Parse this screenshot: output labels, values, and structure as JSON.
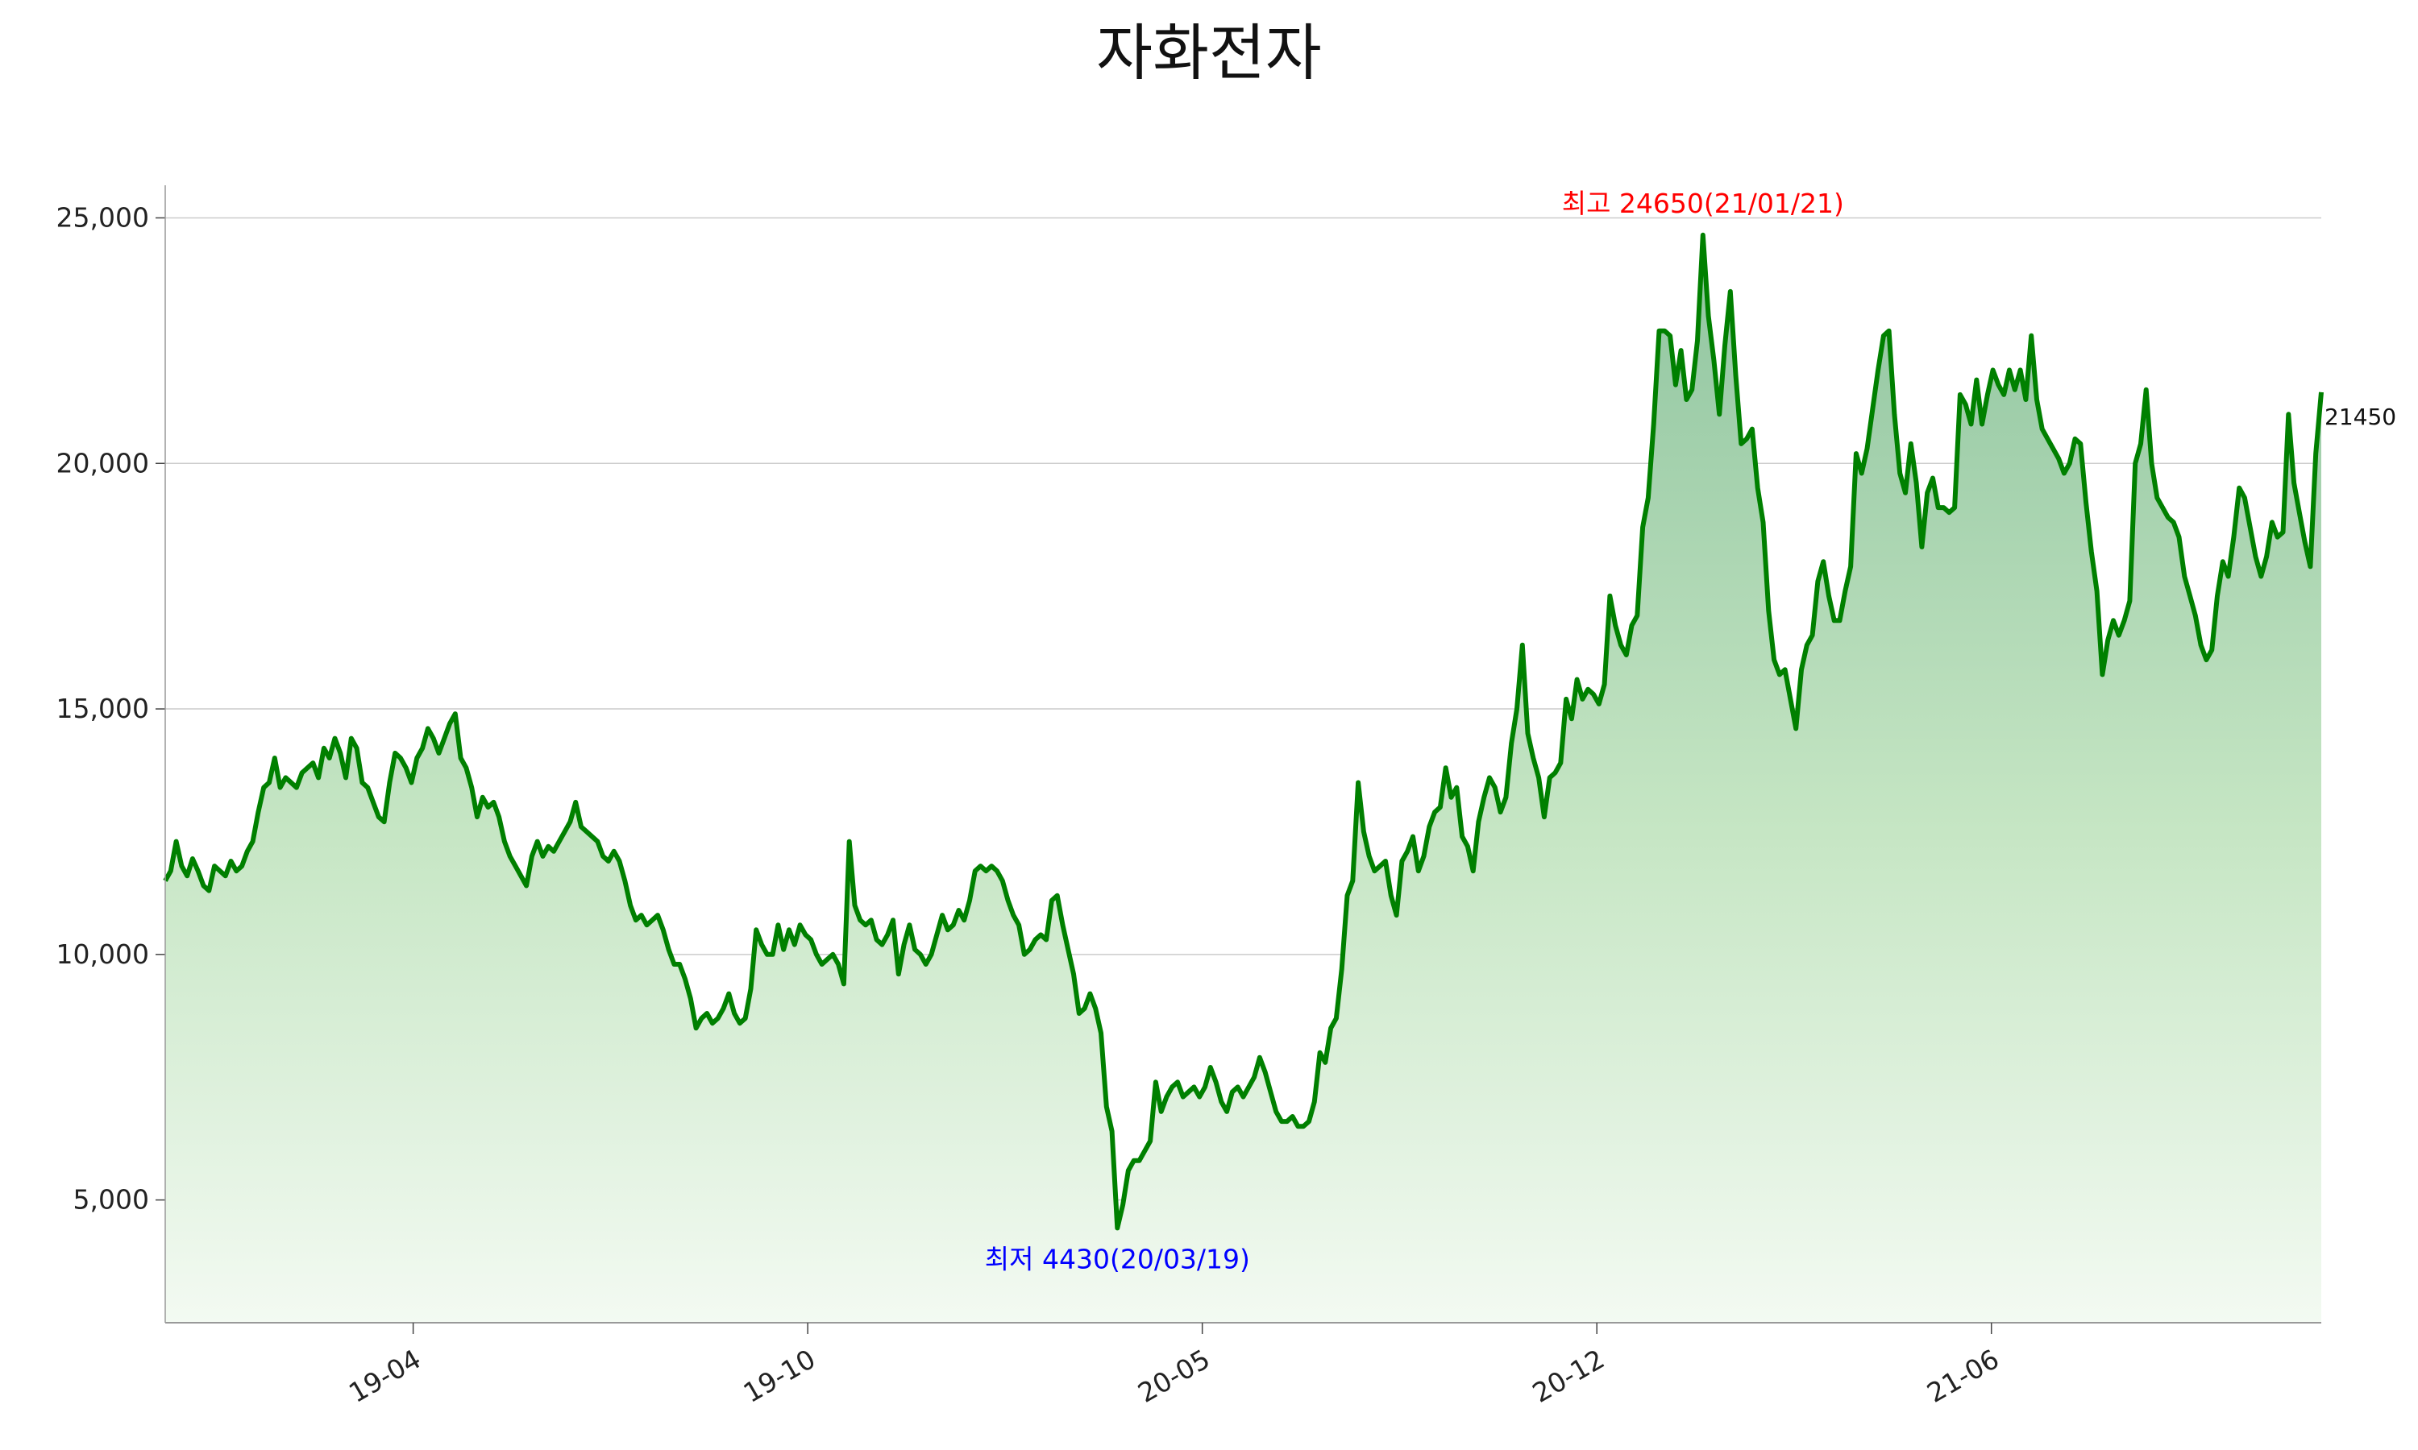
{
  "chart_data": {
    "type": "area",
    "title": "자화전자",
    "xlabel": "",
    "ylabel": "",
    "ylim": [
      2500,
      25500
    ],
    "y_ticks": [
      {
        "value": 5000,
        "label": "5,000"
      },
      {
        "value": 10000,
        "label": "10,000"
      },
      {
        "value": 15000,
        "label": "15,000"
      },
      {
        "value": 20000,
        "label": "20,000"
      },
      {
        "value": 25000,
        "label": "25,000"
      }
    ],
    "x_ticks": [
      "19-04",
      "19-10",
      "20-05",
      "20-12",
      "21-06"
    ],
    "grid": "horizontal",
    "colors": {
      "line": "#008000",
      "fill_top": "#8fc49f",
      "fill_bottom": "#f3faf2",
      "high": "#ff0000",
      "low": "#0000ff",
      "grid": "#cccccc"
    },
    "annotations": {
      "high": {
        "label": "최고 24650(21/01/21)",
        "value": 24650
      },
      "low": {
        "label": "최저 4430(20/03/19)",
        "value": 4430
      },
      "last": {
        "label": "21450",
        "value": 21450
      }
    },
    "series": [
      {
        "values": [
          11500,
          11700,
          12300,
          11800,
          11600,
          11950,
          11700,
          11400,
          11300,
          11800,
          11700,
          11600,
          11900,
          11700,
          11800,
          12100,
          12300,
          12900,
          13400,
          13500,
          14000,
          13400,
          13600,
          13500,
          13400,
          13700,
          13800,
          13900,
          13600,
          14200,
          14000,
          14400,
          14100,
          13600,
          14400,
          14200,
          13500,
          13400,
          13100,
          12800,
          12700,
          13500,
          14100,
          14000,
          13800,
          13500,
          14000,
          14200,
          14600,
          14400,
          14100,
          14400,
          14700,
          14900,
          14000,
          13800,
          13400,
          12800,
          13200,
          13000,
          13100,
          12800,
          12300,
          12000,
          11800,
          11600,
          11400,
          12000,
          12300,
          12000,
          12200,
          12100,
          12300,
          12500,
          12700,
          13100,
          12600,
          12500,
          12400,
          12300,
          12000,
          11900,
          12100,
          11900,
          11500,
          11000,
          10700,
          10800,
          10600,
          10700,
          10800,
          10500,
          10100,
          9800,
          9800,
          9500,
          9100,
          8500,
          8700,
          8800,
          8600,
          8700,
          8900,
          9200,
          8800,
          8600,
          8700,
          9300,
          10500,
          10200,
          10000,
          10000,
          10600,
          10100,
          10500,
          10200,
          10600,
          10400,
          10300,
          10000,
          9800,
          9900,
          10000,
          9800,
          9400,
          12300,
          11000,
          10700,
          10600,
          10700,
          10300,
          10200,
          10400,
          10700,
          9600,
          10200,
          10600,
          10100,
          10000,
          9800,
          10000,
          10400,
          10800,
          10500,
          10600,
          10900,
          10700,
          11100,
          11700,
          11800,
          11700,
          11800,
          11700,
          11500,
          11100,
          10800,
          10600,
          10000,
          10100,
          10300,
          10400,
          10300,
          11100,
          11200,
          10600,
          10100,
          9600,
          8800,
          8900,
          9200,
          8900,
          8400,
          6900,
          6400,
          4430,
          4900,
          5600,
          5800,
          5800,
          6000,
          6200,
          7400,
          6800,
          7100,
          7300,
          7400,
          7100,
          7200,
          7300,
          7100,
          7300,
          7700,
          7400,
          7000,
          6800,
          7200,
          7300,
          7100,
          7300,
          7500,
          7900,
          7600,
          7200,
          6800,
          6600,
          6600,
          6700,
          6500,
          6500,
          6600,
          7000,
          8000,
          7800,
          8500,
          8700,
          9700,
          11200,
          11500,
          13500,
          12500,
          12000,
          11700,
          11800,
          11900,
          11200,
          10800,
          11900,
          12100,
          12400,
          11700,
          12000,
          12600,
          12900,
          13000,
          13800,
          13200,
          13400,
          12400,
          12200,
          11700,
          12700,
          13200,
          13600,
          13400,
          12900,
          13200,
          14300,
          15000,
          16300,
          14500,
          14000,
          13600,
          12800,
          13600,
          13700,
          13900,
          15200,
          14800,
          15600,
          15200,
          15400,
          15300,
          15100,
          15500,
          17300,
          16700,
          16300,
          16100,
          16700,
          16900,
          18700,
          19300,
          20800,
          22700,
          22700,
          22600,
          21600,
          22300,
          21300,
          21500,
          22500,
          24650,
          23000,
          22100,
          21000,
          22400,
          23500,
          21800,
          20400,
          20500,
          20700,
          19500,
          18800,
          17000,
          16000,
          15700,
          15800,
          15200,
          14600,
          15800,
          16300,
          16500,
          17600,
          18000,
          17300,
          16800,
          16800,
          17400,
          17900,
          20200,
          19800,
          20300,
          21100,
          21900,
          22600,
          22700,
          21000,
          19800,
          19400,
          20400,
          19600,
          18300,
          19400,
          19700,
          19100,
          19100,
          19000,
          19100,
          21400,
          21200,
          20800,
          21700,
          20800,
          21400,
          21900,
          21600,
          21400,
          21900,
          21500,
          21900,
          21300,
          22600,
          21300,
          20700,
          20500,
          20300,
          20100,
          19800,
          20000,
          20500,
          20400,
          19200,
          18200,
          17400,
          15700,
          16400,
          16800,
          16500,
          16800,
          17200,
          20000,
          20400,
          21500,
          20000,
          19300,
          19100,
          18900,
          18800,
          18500,
          17700,
          17300,
          16900,
          16300,
          16000,
          16200,
          17300,
          18000,
          17700,
          18500,
          19500,
          19300,
          18700,
          18100,
          17700,
          18100,
          18800,
          18500,
          18600,
          21000,
          19600,
          19000,
          18400,
          17900,
          20200,
          21450
        ]
      }
    ]
  }
}
